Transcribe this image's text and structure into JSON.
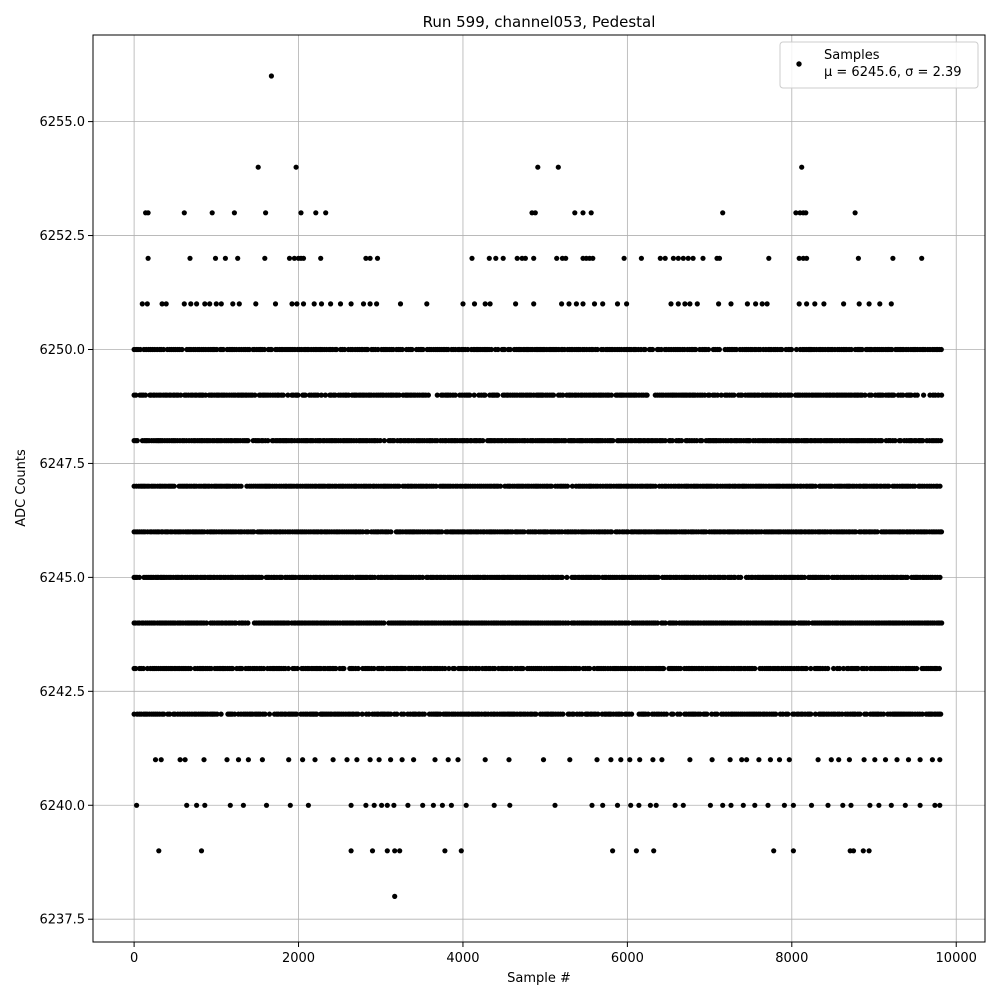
{
  "chart_data": {
    "type": "scatter",
    "title": "Run 599, channel053, Pedestal",
    "xlabel": "Sample #",
    "ylabel": "ADC Counts",
    "xlim": [
      -500,
      10350
    ],
    "ylim": [
      6237.0,
      6256.9
    ],
    "x_ticks": [
      0,
      2000,
      4000,
      6000,
      8000,
      10000
    ],
    "y_ticks": [
      6237.5,
      6240.0,
      6242.5,
      6245.0,
      6247.5,
      6250.0,
      6252.5,
      6255.0
    ],
    "y_tick_labels": [
      "6237.5",
      "6240.0",
      "6242.5",
      "6245.0",
      "6247.5",
      "6250.0",
      "6252.5",
      "6255.0"
    ],
    "x_tick_labels": [
      "0",
      "2000",
      "4000",
      "6000",
      "8000",
      "10000"
    ],
    "grid": true,
    "marker_color": "#000000",
    "legend": {
      "placement": "top-right",
      "label": "Samples",
      "stats_text": "μ = 6245.6, σ = 2.39"
    },
    "series": [
      {
        "name": "Samples",
        "dense_bands": [
          {
            "y": 6242,
            "x_range": [
              0,
              9830
            ]
          },
          {
            "y": 6243,
            "x_range": [
              0,
              9830
            ]
          },
          {
            "y": 6244,
            "x_range": [
              0,
              9830
            ]
          },
          {
            "y": 6245,
            "x_range": [
              0,
              9830
            ]
          },
          {
            "y": 6246,
            "x_range": [
              0,
              9830
            ]
          },
          {
            "y": 6247,
            "x_range": [
              0,
              9830
            ]
          },
          {
            "y": 6248,
            "x_range": [
              0,
              9830
            ]
          },
          {
            "y": 6249,
            "x_range": [
              0,
              9830
            ]
          },
          {
            "y": 6250,
            "x_range": [
              0,
              9830
            ]
          }
        ],
        "points": [
          [
            1670,
            6256
          ],
          [
            1510,
            6254
          ],
          [
            1970,
            6254
          ],
          [
            4910,
            6254
          ],
          [
            5160,
            6254
          ],
          [
            8120,
            6254
          ],
          [
            140,
            6253
          ],
          [
            170,
            6253
          ],
          [
            610,
            6253
          ],
          [
            950,
            6253
          ],
          [
            1220,
            6253
          ],
          [
            1600,
            6253
          ],
          [
            2030,
            6253
          ],
          [
            2210,
            6253
          ],
          [
            2330,
            6253
          ],
          [
            4840,
            6253
          ],
          [
            4880,
            6253
          ],
          [
            5360,
            6253
          ],
          [
            5460,
            6253
          ],
          [
            5560,
            6253
          ],
          [
            7160,
            6253
          ],
          [
            8050,
            6253
          ],
          [
            8100,
            6253
          ],
          [
            8140,
            6253
          ],
          [
            8170,
            6253
          ],
          [
            8770,
            6253
          ],
          [
            170,
            6252
          ],
          [
            680,
            6252
          ],
          [
            990,
            6252
          ],
          [
            1110,
            6252
          ],
          [
            1260,
            6252
          ],
          [
            1590,
            6252
          ],
          [
            1890,
            6252
          ],
          [
            1950,
            6252
          ],
          [
            2000,
            6252
          ],
          [
            2030,
            6252
          ],
          [
            2060,
            6252
          ],
          [
            2270,
            6252
          ],
          [
            2820,
            6252
          ],
          [
            2870,
            6252
          ],
          [
            2960,
            6252
          ],
          [
            4110,
            6252
          ],
          [
            4320,
            6252
          ],
          [
            4400,
            6252
          ],
          [
            4490,
            6252
          ],
          [
            4660,
            6252
          ],
          [
            4720,
            6252
          ],
          [
            4760,
            6252
          ],
          [
            4860,
            6252
          ],
          [
            5140,
            6252
          ],
          [
            5210,
            6252
          ],
          [
            5250,
            6252
          ],
          [
            5460,
            6252
          ],
          [
            5500,
            6252
          ],
          [
            5540,
            6252
          ],
          [
            5580,
            6252
          ],
          [
            5960,
            6252
          ],
          [
            6170,
            6252
          ],
          [
            6400,
            6252
          ],
          [
            6460,
            6252
          ],
          [
            6560,
            6252
          ],
          [
            6620,
            6252
          ],
          [
            6680,
            6252
          ],
          [
            6740,
            6252
          ],
          [
            6800,
            6252
          ],
          [
            6920,
            6252
          ],
          [
            7090,
            6252
          ],
          [
            7120,
            6252
          ],
          [
            7720,
            6252
          ],
          [
            8090,
            6252
          ],
          [
            8140,
            6252
          ],
          [
            8180,
            6252
          ],
          [
            8810,
            6252
          ],
          [
            9230,
            6252
          ],
          [
            9580,
            6252
          ],
          [
            100,
            6251
          ],
          [
            160,
            6251
          ],
          [
            340,
            6251
          ],
          [
            390,
            6251
          ],
          [
            610,
            6251
          ],
          [
            690,
            6251
          ],
          [
            760,
            6251
          ],
          [
            860,
            6251
          ],
          [
            920,
            6251
          ],
          [
            1000,
            6251
          ],
          [
            1060,
            6251
          ],
          [
            1200,
            6251
          ],
          [
            1280,
            6251
          ],
          [
            1480,
            6251
          ],
          [
            1720,
            6251
          ],
          [
            1920,
            6251
          ],
          [
            1980,
            6251
          ],
          [
            2060,
            6251
          ],
          [
            2190,
            6251
          ],
          [
            2280,
            6251
          ],
          [
            2390,
            6251
          ],
          [
            2510,
            6251
          ],
          [
            2640,
            6251
          ],
          [
            2790,
            6251
          ],
          [
            2870,
            6251
          ],
          [
            2950,
            6251
          ],
          [
            3240,
            6251
          ],
          [
            3560,
            6251
          ],
          [
            4000,
            6251
          ],
          [
            4140,
            6251
          ],
          [
            4270,
            6251
          ],
          [
            4330,
            6251
          ],
          [
            4640,
            6251
          ],
          [
            4860,
            6251
          ],
          [
            5200,
            6251
          ],
          [
            5290,
            6251
          ],
          [
            5380,
            6251
          ],
          [
            5460,
            6251
          ],
          [
            5600,
            6251
          ],
          [
            5700,
            6251
          ],
          [
            5880,
            6251
          ],
          [
            5990,
            6251
          ],
          [
            6530,
            6251
          ],
          [
            6620,
            6251
          ],
          [
            6700,
            6251
          ],
          [
            6760,
            6251
          ],
          [
            6850,
            6251
          ],
          [
            7110,
            6251
          ],
          [
            7260,
            6251
          ],
          [
            7460,
            6251
          ],
          [
            7560,
            6251
          ],
          [
            7640,
            6251
          ],
          [
            7700,
            6251
          ],
          [
            8090,
            6251
          ],
          [
            8180,
            6251
          ],
          [
            8280,
            6251
          ],
          [
            8390,
            6251
          ],
          [
            8630,
            6251
          ],
          [
            8820,
            6251
          ],
          [
            8940,
            6251
          ],
          [
            9070,
            6251
          ],
          [
            9210,
            6251
          ],
          [
            4270,
            6241
          ],
          [
            3660,
            6241
          ],
          [
            3820,
            6241
          ],
          [
            3940,
            6241
          ],
          [
            4560,
            6241
          ],
          [
            4980,
            6241
          ],
          [
            5300,
            6241
          ],
          [
            5630,
            6241
          ],
          [
            5800,
            6241
          ],
          [
            5920,
            6241
          ],
          [
            6030,
            6241
          ],
          [
            6150,
            6241
          ],
          [
            6310,
            6241
          ],
          [
            6420,
            6241
          ],
          [
            6760,
            6241
          ],
          [
            7030,
            6241
          ],
          [
            7250,
            6241
          ],
          [
            7390,
            6241
          ],
          [
            7450,
            6241
          ],
          [
            7600,
            6241
          ],
          [
            7740,
            6241
          ],
          [
            7850,
            6241
          ],
          [
            7970,
            6241
          ],
          [
            8320,
            6241
          ],
          [
            8480,
            6241
          ],
          [
            8570,
            6241
          ],
          [
            8700,
            6241
          ],
          [
            8880,
            6241
          ],
          [
            9010,
            6241
          ],
          [
            9140,
            6241
          ],
          [
            9280,
            6241
          ],
          [
            9420,
            6241
          ],
          [
            9560,
            6241
          ],
          [
            9710,
            6241
          ],
          [
            9800,
            6241
          ],
          [
            260,
            6241
          ],
          [
            330,
            6241
          ],
          [
            560,
            6241
          ],
          [
            620,
            6241
          ],
          [
            850,
            6241
          ],
          [
            1130,
            6241
          ],
          [
            1270,
            6241
          ],
          [
            1390,
            6241
          ],
          [
            1560,
            6241
          ],
          [
            1880,
            6241
          ],
          [
            2050,
            6241
          ],
          [
            2200,
            6241
          ],
          [
            2420,
            6241
          ],
          [
            2590,
            6241
          ],
          [
            2710,
            6241
          ],
          [
            2870,
            6241
          ],
          [
            2980,
            6241
          ],
          [
            3120,
            6241
          ],
          [
            3260,
            6241
          ],
          [
            3400,
            6241
          ],
          [
            30,
            6240
          ],
          [
            640,
            6240
          ],
          [
            760,
            6240
          ],
          [
            860,
            6240
          ],
          [
            1170,
            6240
          ],
          [
            1330,
            6240
          ],
          [
            1610,
            6240
          ],
          [
            1900,
            6240
          ],
          [
            2120,
            6240
          ],
          [
            2640,
            6240
          ],
          [
            2820,
            6240
          ],
          [
            2920,
            6240
          ],
          [
            3010,
            6240
          ],
          [
            3080,
            6240
          ],
          [
            3160,
            6240
          ],
          [
            3330,
            6240
          ],
          [
            3510,
            6240
          ],
          [
            3640,
            6240
          ],
          [
            3750,
            6240
          ],
          [
            3860,
            6240
          ],
          [
            4040,
            6240
          ],
          [
            4380,
            6240
          ],
          [
            4570,
            6240
          ],
          [
            5120,
            6240
          ],
          [
            5570,
            6240
          ],
          [
            5700,
            6240
          ],
          [
            5880,
            6240
          ],
          [
            6040,
            6240
          ],
          [
            6140,
            6240
          ],
          [
            6280,
            6240
          ],
          [
            6350,
            6240
          ],
          [
            6580,
            6240
          ],
          [
            6680,
            6240
          ],
          [
            7010,
            6240
          ],
          [
            7160,
            6240
          ],
          [
            7260,
            6240
          ],
          [
            7410,
            6240
          ],
          [
            7550,
            6240
          ],
          [
            7710,
            6240
          ],
          [
            7910,
            6240
          ],
          [
            8020,
            6240
          ],
          [
            8240,
            6240
          ],
          [
            8440,
            6240
          ],
          [
            8620,
            6240
          ],
          [
            8720,
            6240
          ],
          [
            8950,
            6240
          ],
          [
            9060,
            6240
          ],
          [
            9210,
            6240
          ],
          [
            9380,
            6240
          ],
          [
            9560,
            6240
          ],
          [
            9740,
            6240
          ],
          [
            9800,
            6240
          ],
          [
            300,
            6239
          ],
          [
            820,
            6239
          ],
          [
            2640,
            6239
          ],
          [
            2900,
            6239
          ],
          [
            3080,
            6239
          ],
          [
            3170,
            6239
          ],
          [
            3230,
            6239
          ],
          [
            3780,
            6239
          ],
          [
            3980,
            6239
          ],
          [
            5820,
            6239
          ],
          [
            6110,
            6239
          ],
          [
            6320,
            6239
          ],
          [
            7780,
            6239
          ],
          [
            8020,
            6239
          ],
          [
            8710,
            6239
          ],
          [
            8750,
            6239
          ],
          [
            8870,
            6239
          ],
          [
            8940,
            6239
          ],
          [
            3170,
            6238
          ]
        ]
      }
    ]
  }
}
